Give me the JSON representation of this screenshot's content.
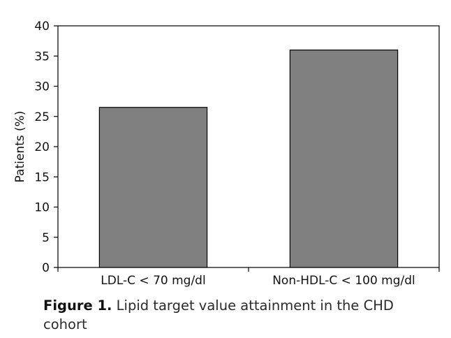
{
  "chart_data": {
    "type": "bar",
    "categories": [
      "LDL-C < 70 mg/dl",
      "Non-HDL-C < 100 mg/dl"
    ],
    "values": [
      26.5,
      36
    ],
    "xlabel": "",
    "ylabel": "Patients (%)",
    "ylim": [
      0,
      40
    ],
    "yticks": [
      0,
      5,
      10,
      15,
      20,
      25,
      30,
      35,
      40
    ],
    "grid": false,
    "legend": "none",
    "bar_color": "#808080"
  },
  "caption": {
    "label": "Figure 1.",
    "text": "Lipid target value attainment in the CHD cohort"
  }
}
